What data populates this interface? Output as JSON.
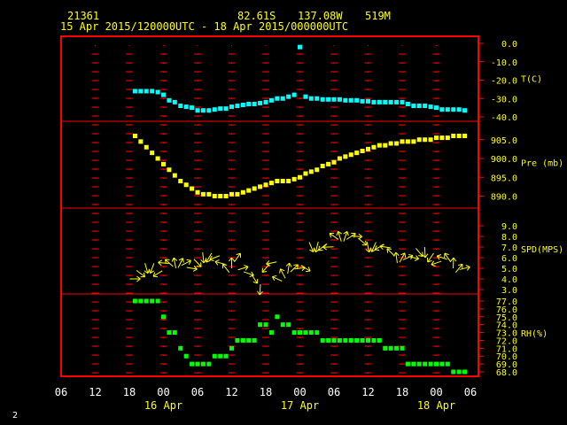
{
  "header": {
    "station": "21361",
    "lat": "82.61S",
    "lon": "137.08W",
    "elev": "519M",
    "period": "15 Apr 2015/120000UTC - 18 Apr 2015/000000UTC"
  },
  "footer": {
    "page_number": "2"
  },
  "colors": {
    "frame": "#ff0000",
    "text": "#ffff00",
    "temp": "#00ffff",
    "pres": "#ffff00",
    "wind": "#ffff00",
    "rh": "#00ff00",
    "grid": "#ff0000",
    "xaxis": "#ffffff"
  },
  "chart_data": {
    "type": "scatter",
    "x_tick_labels": [
      "06",
      "12",
      "18",
      "00",
      "06",
      "12",
      "18",
      "00",
      "06",
      "12",
      "18",
      "00",
      "06"
    ],
    "date_labels": [
      "16 Apr",
      "17 Apr",
      "18 Apr"
    ],
    "panels": [
      {
        "name": "temperature",
        "label": "T(C)",
        "ticks": [
          "0.0",
          "-10.0",
          "-20.0",
          "-30.0",
          "-40.0"
        ],
        "ylim": [
          -40,
          0
        ],
        "x_hours": [
          13,
          14,
          15,
          16,
          17,
          18,
          19,
          20,
          21,
          22,
          23,
          24,
          25,
          26,
          27,
          28,
          29,
          30,
          31,
          32,
          33,
          34,
          35,
          36,
          37,
          38,
          39,
          40,
          41,
          42,
          43,
          44,
          45,
          46,
          47,
          48,
          49,
          50,
          51,
          52,
          53,
          54,
          55,
          56,
          57,
          58,
          59,
          60,
          61,
          62,
          63,
          64,
          65,
          66,
          67,
          68,
          69,
          70,
          71
        ],
        "values": [
          -26,
          -26,
          -26,
          -26,
          -26.5,
          -28,
          -31,
          -32,
          -34,
          -34.5,
          -35,
          -36.5,
          -36.5,
          -36.5,
          -36,
          -35.5,
          -35.5,
          -34.5,
          -34,
          -33.5,
          -33,
          -33,
          -32.5,
          -32,
          -31,
          -30,
          -30,
          -29,
          -28,
          -2,
          -29,
          -30,
          -30,
          -30.5,
          -30.5,
          -30.5,
          -30.5,
          -31,
          -31,
          -31,
          -31.5,
          -31.5,
          -32,
          -32,
          -32,
          -32,
          -32,
          -32,
          -33,
          -34,
          -34,
          -34,
          -34.5,
          -35,
          -36,
          -36,
          -36,
          -36,
          -36.5
        ]
      },
      {
        "name": "pressure",
        "label": "Pre (mb)",
        "ticks": [
          "905.0",
          "900.0",
          "895.0",
          "890.0"
        ],
        "ylim": [
          888,
          908
        ],
        "x_hours": [
          13,
          14,
          15,
          16,
          17,
          18,
          19,
          20,
          21,
          22,
          23,
          24,
          25,
          26,
          27,
          28,
          29,
          30,
          31,
          32,
          33,
          34,
          35,
          36,
          37,
          38,
          39,
          40,
          41,
          42,
          43,
          44,
          45,
          46,
          47,
          48,
          49,
          50,
          51,
          52,
          53,
          54,
          55,
          56,
          57,
          58,
          59,
          60,
          61,
          62,
          63,
          64,
          65,
          66,
          67,
          68,
          69,
          70,
          71
        ],
        "values": [
          906,
          904.5,
          903,
          901.5,
          900,
          898.5,
          897,
          895.5,
          894,
          893,
          892,
          891,
          890.5,
          890.5,
          890,
          890,
          890,
          890.5,
          890.5,
          891,
          891.5,
          892,
          892.5,
          893,
          893.5,
          894,
          894,
          894,
          894.5,
          895,
          896,
          896.5,
          897,
          898,
          898.5,
          899,
          900,
          900.5,
          901,
          901.5,
          902,
          902.5,
          903,
          903.5,
          903.5,
          904,
          904,
          904.5,
          904.5,
          904.5,
          905,
          905,
          905,
          905.5,
          905.5,
          905.5,
          906,
          906,
          906
        ]
      },
      {
        "name": "wind_speed",
        "label": "SPD(MPS)",
        "ticks": [
          "9.0",
          "8.0",
          "7.0",
          "6.0",
          "5.0",
          "4.0",
          "3.0"
        ],
        "ylim": [
          3,
          10
        ],
        "x_hours": [
          13,
          14,
          15,
          16,
          17,
          18,
          19,
          20,
          21,
          22,
          23,
          24,
          25,
          26,
          27,
          28,
          29,
          30,
          31,
          32,
          33,
          34,
          35,
          36,
          37,
          38,
          39,
          40,
          41,
          42,
          43,
          44,
          45,
          46,
          47,
          48,
          49,
          50,
          51,
          52,
          53,
          54,
          55,
          56,
          57,
          58,
          59,
          60,
          61,
          62,
          63,
          64,
          65,
          66,
          67,
          68,
          69,
          70,
          71
        ],
        "values": [
          4,
          4.5,
          5,
          5,
          4.5,
          5.5,
          5.5,
          5.5,
          5.5,
          5.5,
          5,
          5.5,
          6,
          6,
          6,
          5.5,
          5,
          5.5,
          6,
          5,
          4.5,
          4,
          3,
          5,
          5.5,
          4,
          4.5,
          5,
          5,
          5,
          5,
          7,
          7,
          7,
          7,
          8,
          8,
          8,
          8,
          8,
          7.5,
          7,
          7,
          7,
          7,
          6.5,
          6,
          6,
          6,
          6,
          6.5,
          6.5,
          6,
          5.5,
          6,
          6,
          5.5,
          5,
          5
        ]
      },
      {
        "name": "relative_humidity",
        "label": "RH(%)",
        "ticks": [
          "77.0",
          "76.0",
          "75.0",
          "74.0",
          "73.0",
          "72.0",
          "71.0",
          "70.0",
          "69.0",
          "68.0"
        ],
        "ylim": [
          68,
          77
        ],
        "x_hours": [
          13,
          14,
          15,
          16,
          17,
          18,
          19,
          20,
          21,
          22,
          23,
          24,
          25,
          26,
          27,
          28,
          29,
          30,
          31,
          32,
          33,
          34,
          35,
          36,
          37,
          38,
          39,
          40,
          41,
          42,
          43,
          44,
          45,
          46,
          47,
          48,
          49,
          50,
          51,
          52,
          53,
          54,
          55,
          56,
          57,
          58,
          59,
          60,
          61,
          62,
          63,
          64,
          65,
          66,
          67,
          68,
          69,
          70,
          71
        ],
        "values": [
          77,
          77,
          77,
          77,
          77,
          75,
          73,
          73,
          71,
          70,
          69,
          69,
          69,
          69,
          70,
          70,
          70,
          71,
          72,
          72,
          72,
          72,
          74,
          74,
          73,
          75,
          74,
          74,
          73,
          73,
          73,
          73,
          73,
          72,
          72,
          72,
          72,
          72,
          72,
          72,
          72,
          72,
          72,
          72,
          71,
          71,
          71,
          71,
          69,
          69,
          69,
          69,
          69,
          69,
          69,
          69,
          68,
          68,
          68
        ]
      }
    ]
  }
}
